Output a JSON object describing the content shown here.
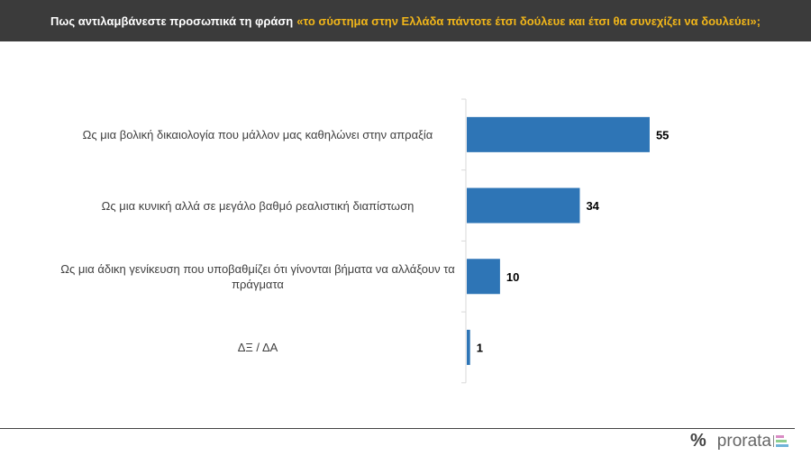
{
  "header": {
    "question": "Πως αντιλαμβάνεστε προσωπικά τη φράση",
    "quote": "«το σύστημα στην Ελλάδα πάντοτε έτσι δούλευε και έτσι θα συνεχίζει να δουλεύει»;"
  },
  "chart_data": {
    "type": "bar",
    "orientation": "horizontal",
    "categories": [
      "Ως μια βολική δικαιολογία που μάλλον μας καθηλώνει στην απραξία",
      "Ως μια κυνική αλλά σε μεγάλο βαθμό ρεαλιστική διαπίστωση",
      "Ως μια άδικη γενίκευση που υποβαθμίζει ότι γίνονται βήματα να αλλάξουν τα πράγματα",
      "ΔΞ / ΔΑ"
    ],
    "values": [
      55,
      34,
      10,
      1
    ],
    "bar_color": "#2e75b6",
    "xlim": [
      0,
      100
    ]
  },
  "logo": {
    "symbol": "%",
    "text": "prorata"
  }
}
